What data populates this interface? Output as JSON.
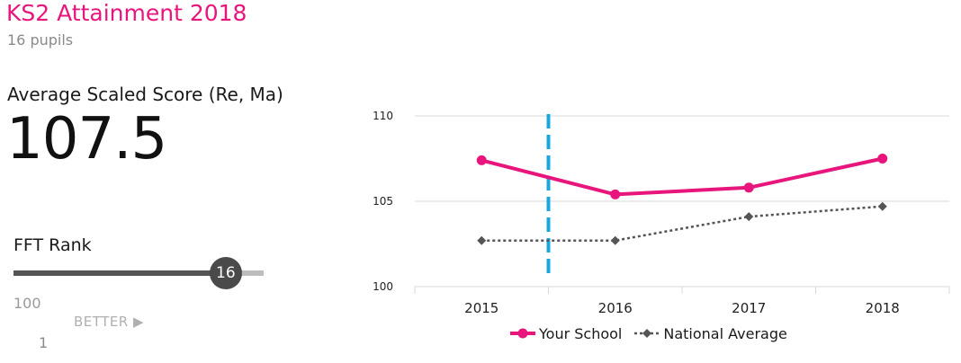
{
  "header": {
    "title": "KS2 Attainment 2018",
    "subtitle": "16 pupils"
  },
  "metric": {
    "label": "Average Scaled Score (Re, Ma)",
    "value": "107.5"
  },
  "rank": {
    "label": "FFT Rank",
    "value": "16",
    "scale_min": "100",
    "scale_max": "1",
    "direction_label": "BETTER ▶"
  },
  "colors": {
    "accent": "#e8157c",
    "national": "#555555",
    "marker_line": "#1aa7dd",
    "grid": "#d9d9d9"
  },
  "chart_data": {
    "type": "line",
    "categories": [
      "2015",
      "2016",
      "2017",
      "2018"
    ],
    "series": [
      {
        "name": "Your School",
        "values": [
          107.4,
          105.4,
          105.8,
          107.5
        ],
        "color": "#e8157c",
        "style": "solid",
        "marker": "circle"
      },
      {
        "name": "National Average",
        "values": [
          102.7,
          102.7,
          104.1,
          104.7
        ],
        "color": "#555555",
        "style": "dotted",
        "marker": "diamond"
      }
    ],
    "yticks": [
      "100",
      "105",
      "110"
    ],
    "ylim": [
      100,
      110
    ],
    "grid": true,
    "legend": "bottom",
    "marker_line_between": [
      "2015",
      "2016"
    ]
  }
}
